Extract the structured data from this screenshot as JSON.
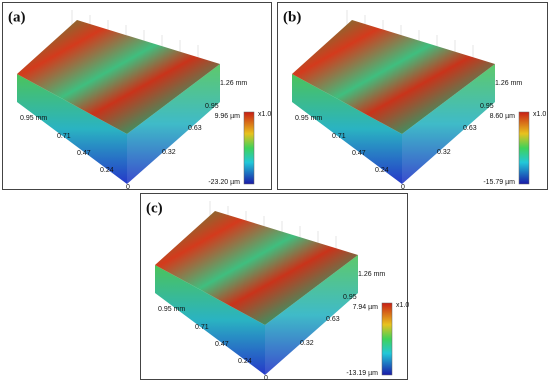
{
  "panels": [
    {
      "label": "(a)",
      "x_ticks": [
        "0.95 mm",
        "0.71",
        "0.47",
        "0.24",
        "0"
      ],
      "y_ticks": [
        "0.32",
        "0.63",
        "0.95",
        "1.26 mm"
      ],
      "colorbar": {
        "scale": "x1.0",
        "max": "9.96 µm",
        "min": "-23.20 µm"
      }
    },
    {
      "label": "(b)",
      "x_ticks": [
        "0.95 mm",
        "0.71",
        "0.47",
        "0.24",
        "0"
      ],
      "y_ticks": [
        "0.32",
        "0.63",
        "0.95",
        "1.26 mm"
      ],
      "colorbar": {
        "scale": "x1.0",
        "max": "8.60 µm",
        "min": "-15.79 µm"
      }
    },
    {
      "label": "(c)",
      "x_ticks": [
        "0.95 mm",
        "0.71",
        "0.47",
        "0.24",
        "0"
      ],
      "y_ticks": [
        "0.32",
        "0.63",
        "0.95",
        "1.26 mm"
      ],
      "colorbar": {
        "scale": "x1.0",
        "max": "7.94 µm",
        "min": "-13.19 µm"
      }
    }
  ]
}
